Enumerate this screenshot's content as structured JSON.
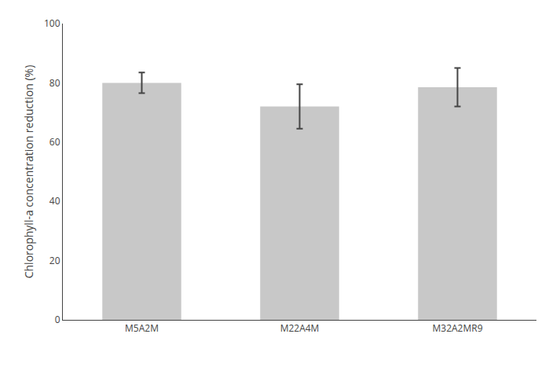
{
  "chart_data": {
    "type": "bar",
    "categories": [
      "M5A2M",
      "M22A4M",
      "M32A2MR9"
    ],
    "values": [
      80.0,
      72.0,
      78.5
    ],
    "errors": [
      3.5,
      7.5,
      6.5
    ],
    "color": "#c8c8c8",
    "ylabel": "Chlorophyll-a concentration reduction (%)",
    "ylim": [
      0,
      100
    ],
    "yticks": [
      0,
      20,
      40,
      60,
      80,
      100
    ],
    "grid": false
  }
}
